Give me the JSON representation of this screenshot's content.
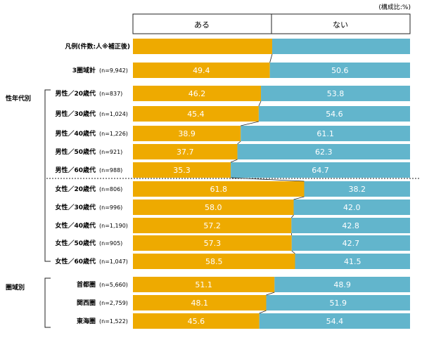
{
  "unit_note": "(構成比:%)",
  "header": {
    "yes_label": "ある",
    "no_label": "ない"
  },
  "legend_label": "凡例(件数:人※補正後)",
  "sections": {
    "by_gender_age": "性年代別",
    "by_region": "圏域別"
  },
  "colors": {
    "yes": "#EEAA00",
    "no": "#62B5CC",
    "line": "#222222"
  },
  "chart_data": {
    "type": "bar",
    "orientation": "horizontal",
    "stacked": true,
    "percent": true,
    "xlim": [
      0,
      100
    ],
    "series": [
      {
        "name": "ある",
        "values": [
          49.4,
          46.2,
          45.4,
          38.9,
          37.7,
          35.3,
          61.8,
          58.0,
          57.2,
          57.3,
          58.5,
          51.1,
          48.1,
          45.6
        ]
      },
      {
        "name": "ない",
        "values": [
          50.6,
          53.8,
          54.6,
          61.1,
          62.3,
          64.7,
          38.2,
          42.0,
          42.8,
          42.7,
          41.5,
          48.9,
          51.9,
          54.4
        ]
      }
    ],
    "categories": [
      "3圏域計",
      "男性/20歳代",
      "男性/30歳代",
      "男性/40歳代",
      "男性/50歳代",
      "男性/60歳代",
      "女性/20歳代",
      "女性/30歳代",
      "女性/40歳代",
      "女性/50歳代",
      "女性/60歳代",
      "首都圏",
      "関西圏",
      "東海圏"
    ],
    "rows": [
      {
        "label": "3圏域計",
        "n": "(n=9,942)",
        "yes": "49.4",
        "no": "50.6"
      },
      {
        "label": "男性／20歳代",
        "n": "(n=837)",
        "yes": "46.2",
        "no": "53.8"
      },
      {
        "label": "男性／30歳代",
        "n": "(n=1,024)",
        "yes": "45.4",
        "no": "54.6"
      },
      {
        "label": "男性／40歳代",
        "n": "(n=1,226)",
        "yes": "38.9",
        "no": "61.1"
      },
      {
        "label": "男性／50歳代",
        "n": "(n=921)",
        "yes": "37.7",
        "no": "62.3"
      },
      {
        "label": "男性／60歳代",
        "n": "(n=988)",
        "yes": "35.3",
        "no": "64.7"
      },
      {
        "label": "女性／20歳代",
        "n": "(n=806)",
        "yes": "61.8",
        "no": "38.2"
      },
      {
        "label": "女性／30歳代",
        "n": "(n=996)",
        "yes": "58.0",
        "no": "42.0"
      },
      {
        "label": "女性／40歳代",
        "n": "(n=1,190)",
        "yes": "57.2",
        "no": "42.8"
      },
      {
        "label": "女性／50歳代",
        "n": "(n=905)",
        "yes": "57.3",
        "no": "42.7"
      },
      {
        "label": "女性／60歳代",
        "n": "(n=1,047)",
        "yes": "58.5",
        "no": "41.5"
      },
      {
        "label": "首都圏",
        "n": "(n=5,660)",
        "yes": "51.1",
        "no": "48.9"
      },
      {
        "label": "関西圏",
        "n": "(n=2,759)",
        "yes": "48.1",
        "no": "51.9"
      },
      {
        "label": "東海圏",
        "n": "(n=1,522)",
        "yes": "45.6",
        "no": "54.4"
      }
    ]
  }
}
